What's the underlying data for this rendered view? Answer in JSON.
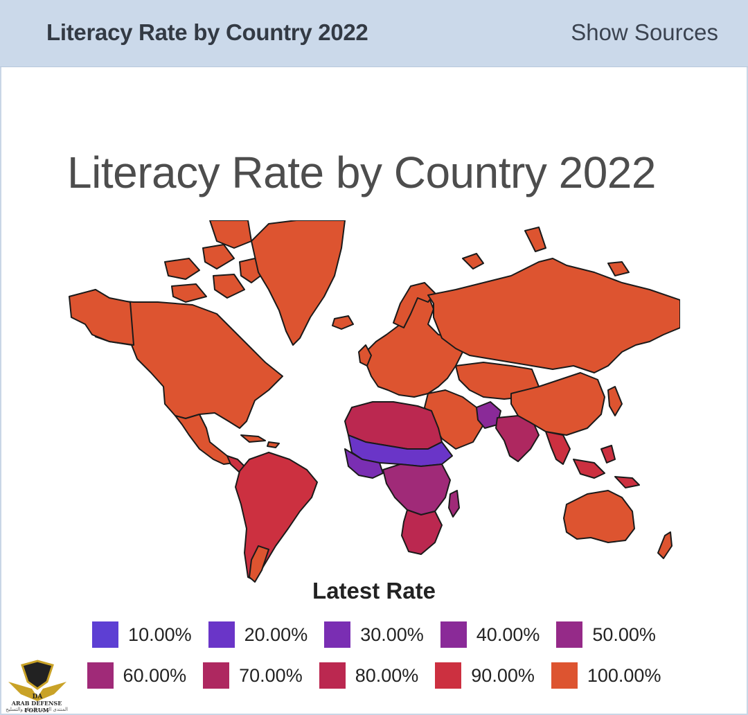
{
  "header": {
    "title": "Literacy Rate by Country 2022",
    "show_sources_label": "Show Sources"
  },
  "chart": {
    "title": "Literacy Rate by Country 2022",
    "legend_title": "Latest Rate"
  },
  "chart_data": {
    "type": "choropleth",
    "title": "Literacy Rate by Country 2022",
    "legend_title": "Latest Rate",
    "legend": [
      {
        "label": "10.00%",
        "color": "#5d3fd3"
      },
      {
        "label": "20.00%",
        "color": "#6a35c8"
      },
      {
        "label": "30.00%",
        "color": "#7a2eb3"
      },
      {
        "label": "40.00%",
        "color": "#8a2a98"
      },
      {
        "label": "50.00%",
        "color": "#952a88"
      },
      {
        "label": "60.00%",
        "color": "#a02a78"
      },
      {
        "label": "70.00%",
        "color": "#ae2860"
      },
      {
        "label": "80.00%",
        "color": "#bb2850"
      },
      {
        "label": "90.00%",
        "color": "#cc3040"
      },
      {
        "label": "100.00%",
        "color": "#dd5430"
      }
    ]
  },
  "watermark": {
    "line1": "ARAB DEFENSE FORUM",
    "line2": "المنتدى العربي للدفاع والتسليح",
    "mark": "DA"
  }
}
